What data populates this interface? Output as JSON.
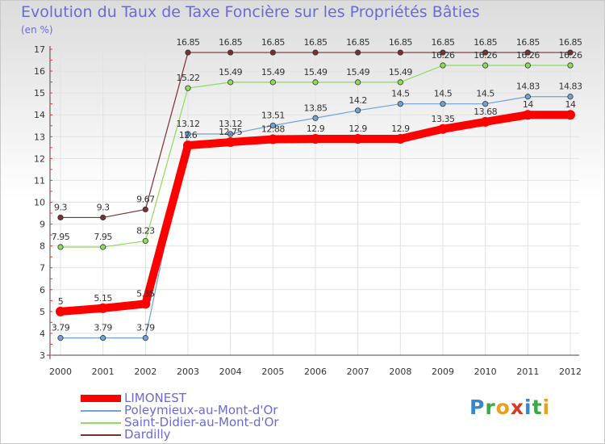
{
  "title": "Evolution du Taux de Taxe Foncière sur les Propriétés Bâties",
  "unit": "(en %)",
  "logo": {
    "letters": [
      "P",
      "r",
      "o",
      "x",
      "i",
      "t",
      "i"
    ],
    "colors": [
      "#3a86c8",
      "#3aaa48",
      "#e8a020",
      "#d83a2a",
      "#3a86c8",
      "#3aaa48",
      "#e8a020"
    ]
  },
  "chart_data": {
    "type": "line",
    "title": "Evolution du Taux de Taxe Foncière sur les Propriétés Bâties",
    "ylabel": "(en %)",
    "xlabel": "",
    "x": [
      "2000",
      "2001",
      "2002",
      "2003",
      "2004",
      "2005",
      "2006",
      "2007",
      "2008",
      "2009",
      "2010",
      "2011",
      "2012"
    ],
    "ylim": [
      3,
      17
    ],
    "yticks": [
      "3",
      "4",
      "5",
      "6",
      "7",
      "8",
      "9",
      "10",
      "11",
      "12",
      "13",
      "14",
      "15",
      "16",
      "17"
    ],
    "grid": true,
    "series": [
      {
        "name": "LIMONEST",
        "color": "#ff0000",
        "values": [
          5,
          5.15,
          5.35,
          12.6,
          12.75,
          12.88,
          12.9,
          12.9,
          12.9,
          13.35,
          13.68,
          14,
          14
        ],
        "labels": [
          "5",
          "5.15",
          "5.35",
          "12.6",
          "12.75",
          "12.88",
          "12.9",
          "12.9",
          "12.9",
          "13.35",
          "13.68",
          "14",
          "14"
        ]
      },
      {
        "name": "Poleymieux-au-Mont-d'Or",
        "color": "#6fa3d6",
        "values": [
          3.79,
          3.79,
          3.79,
          13.12,
          13.12,
          13.51,
          13.85,
          14.2,
          14.5,
          14.5,
          14.5,
          14.83,
          14.83
        ],
        "labels": [
          "3.79",
          "3.79",
          "3.79",
          "13.12",
          "13.12",
          "13.51",
          "13.85",
          "14.2",
          "14.5",
          "14.5",
          "14.5",
          "14.83",
          "14.83"
        ]
      },
      {
        "name": "Saint-Didier-au-Mont-d'Or",
        "color": "#8fdb5a",
        "values": [
          7.95,
          7.95,
          8.23,
          15.22,
          15.49,
          15.49,
          15.49,
          15.49,
          15.49,
          16.26,
          16.26,
          16.26,
          16.26
        ],
        "labels": [
          "7.95",
          "7.95",
          "8.23",
          "15.22",
          "15.49",
          "15.49",
          "15.49",
          "15.49",
          "15.49",
          "16.26",
          "16.26",
          "16.26",
          "16.26"
        ]
      },
      {
        "name": "Dardilly",
        "color": "#7a3030",
        "values": [
          9.3,
          9.3,
          9.67,
          16.85,
          16.85,
          16.85,
          16.85,
          16.85,
          16.85,
          16.85,
          16.85,
          16.85,
          16.85
        ],
        "labels": [
          "9.3",
          "9.3",
          "9.67",
          "16.85",
          "16.85",
          "16.85",
          "16.85",
          "16.85",
          "16.85",
          "16.85",
          "16.85",
          "16.85",
          "16.85"
        ]
      }
    ]
  }
}
